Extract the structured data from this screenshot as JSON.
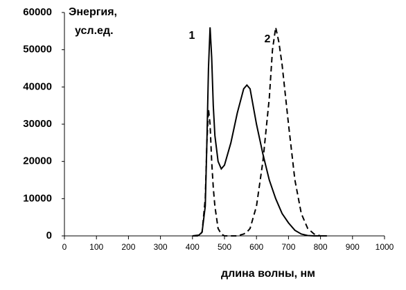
{
  "chart_data": {
    "type": "line",
    "y_label_lines": [
      "Энергия,",
      "усл.ед."
    ],
    "x_label": "длина волны, нм",
    "x": [
      400,
      420,
      430,
      440,
      445,
      450,
      455,
      460,
      465,
      470,
      480,
      490,
      500,
      520,
      540,
      560,
      570,
      580,
      600,
      620,
      640,
      650,
      660,
      670,
      680,
      700,
      720,
      740,
      760,
      780,
      800,
      820
    ],
    "series": [
      {
        "name": "1",
        "color": "#000000",
        "dash": "solid",
        "values": [
          0,
          200,
          1000,
          8000,
          25000,
          45000,
          56000,
          48000,
          35000,
          27000,
          20000,
          18000,
          19000,
          25000,
          33000,
          39500,
          40500,
          39500,
          30000,
          22000,
          15000,
          12500,
          10000,
          8000,
          6000,
          3500,
          1500,
          500,
          100,
          0,
          0,
          0
        ]
      },
      {
        "name": "2",
        "color": "#000000",
        "dash": "dashed",
        "values": [
          0,
          0,
          1000,
          10000,
          25000,
          34000,
          30000,
          20000,
          13000,
          8000,
          2000,
          500,
          0,
          0,
          0,
          500,
          1000,
          2000,
          8000,
          20000,
          37000,
          50000,
          56000,
          52000,
          46000,
          30000,
          15000,
          6000,
          2000,
          500,
          0,
          0
        ]
      }
    ],
    "xlim": [
      0,
      1000
    ],
    "xticks": [
      0,
      100,
      200,
      300,
      400,
      500,
      600,
      700,
      800,
      900,
      1000
    ],
    "ylim": [
      0,
      60000
    ],
    "yticks": [
      0,
      10000,
      20000,
      30000,
      40000,
      50000,
      60000
    ],
    "grid": false
  }
}
